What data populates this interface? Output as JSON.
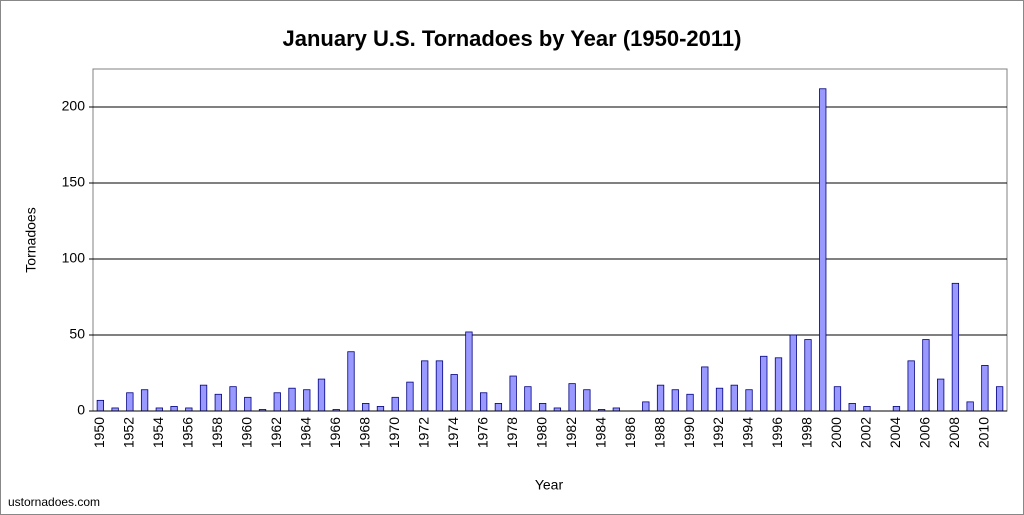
{
  "chart_data": {
    "type": "bar",
    "title": "January U.S. Tornadoes by Year (1950-2011)",
    "x_label": "Year",
    "y_label": "Tornadoes",
    "source": "ustornadoes.com",
    "categories": [
      "1950",
      null,
      "1952",
      null,
      "1954",
      null,
      "1956",
      null,
      "1958",
      null,
      "1960",
      null,
      "1962",
      null,
      "1964",
      null,
      "1966",
      null,
      "1968",
      null,
      "1970",
      null,
      "1972",
      null,
      "1974",
      null,
      "1976",
      null,
      "1978",
      null,
      "1980",
      null,
      "1982",
      null,
      "1984",
      null,
      "1986",
      null,
      "1988",
      null,
      "1990",
      null,
      "1992",
      null,
      "1994",
      null,
      "1996",
      null,
      "1998",
      null,
      "2000",
      null,
      "2002",
      null,
      "2004",
      null,
      "2006",
      null,
      "2008",
      null,
      "2010",
      null
    ],
    "values": [
      7,
      2,
      12,
      14,
      2,
      3,
      2,
      17,
      11,
      16,
      9,
      1,
      12,
      15,
      14,
      21,
      1,
      39,
      5,
      3,
      9,
      19,
      33,
      33,
      24,
      52,
      12,
      5,
      23,
      16,
      5,
      2,
      18,
      14,
      1,
      2,
      0,
      6,
      17,
      14,
      11,
      29,
      15,
      17,
      14,
      36,
      35,
      50,
      47,
      212,
      16,
      5,
      3,
      0,
      3,
      33,
      47,
      21,
      84,
      6,
      30,
      16
    ],
    "color": "#9999ff",
    "ylim": [
      0,
      225
    ],
    "yticks": [
      0,
      50,
      100,
      150,
      200
    ],
    "grid": true
  }
}
